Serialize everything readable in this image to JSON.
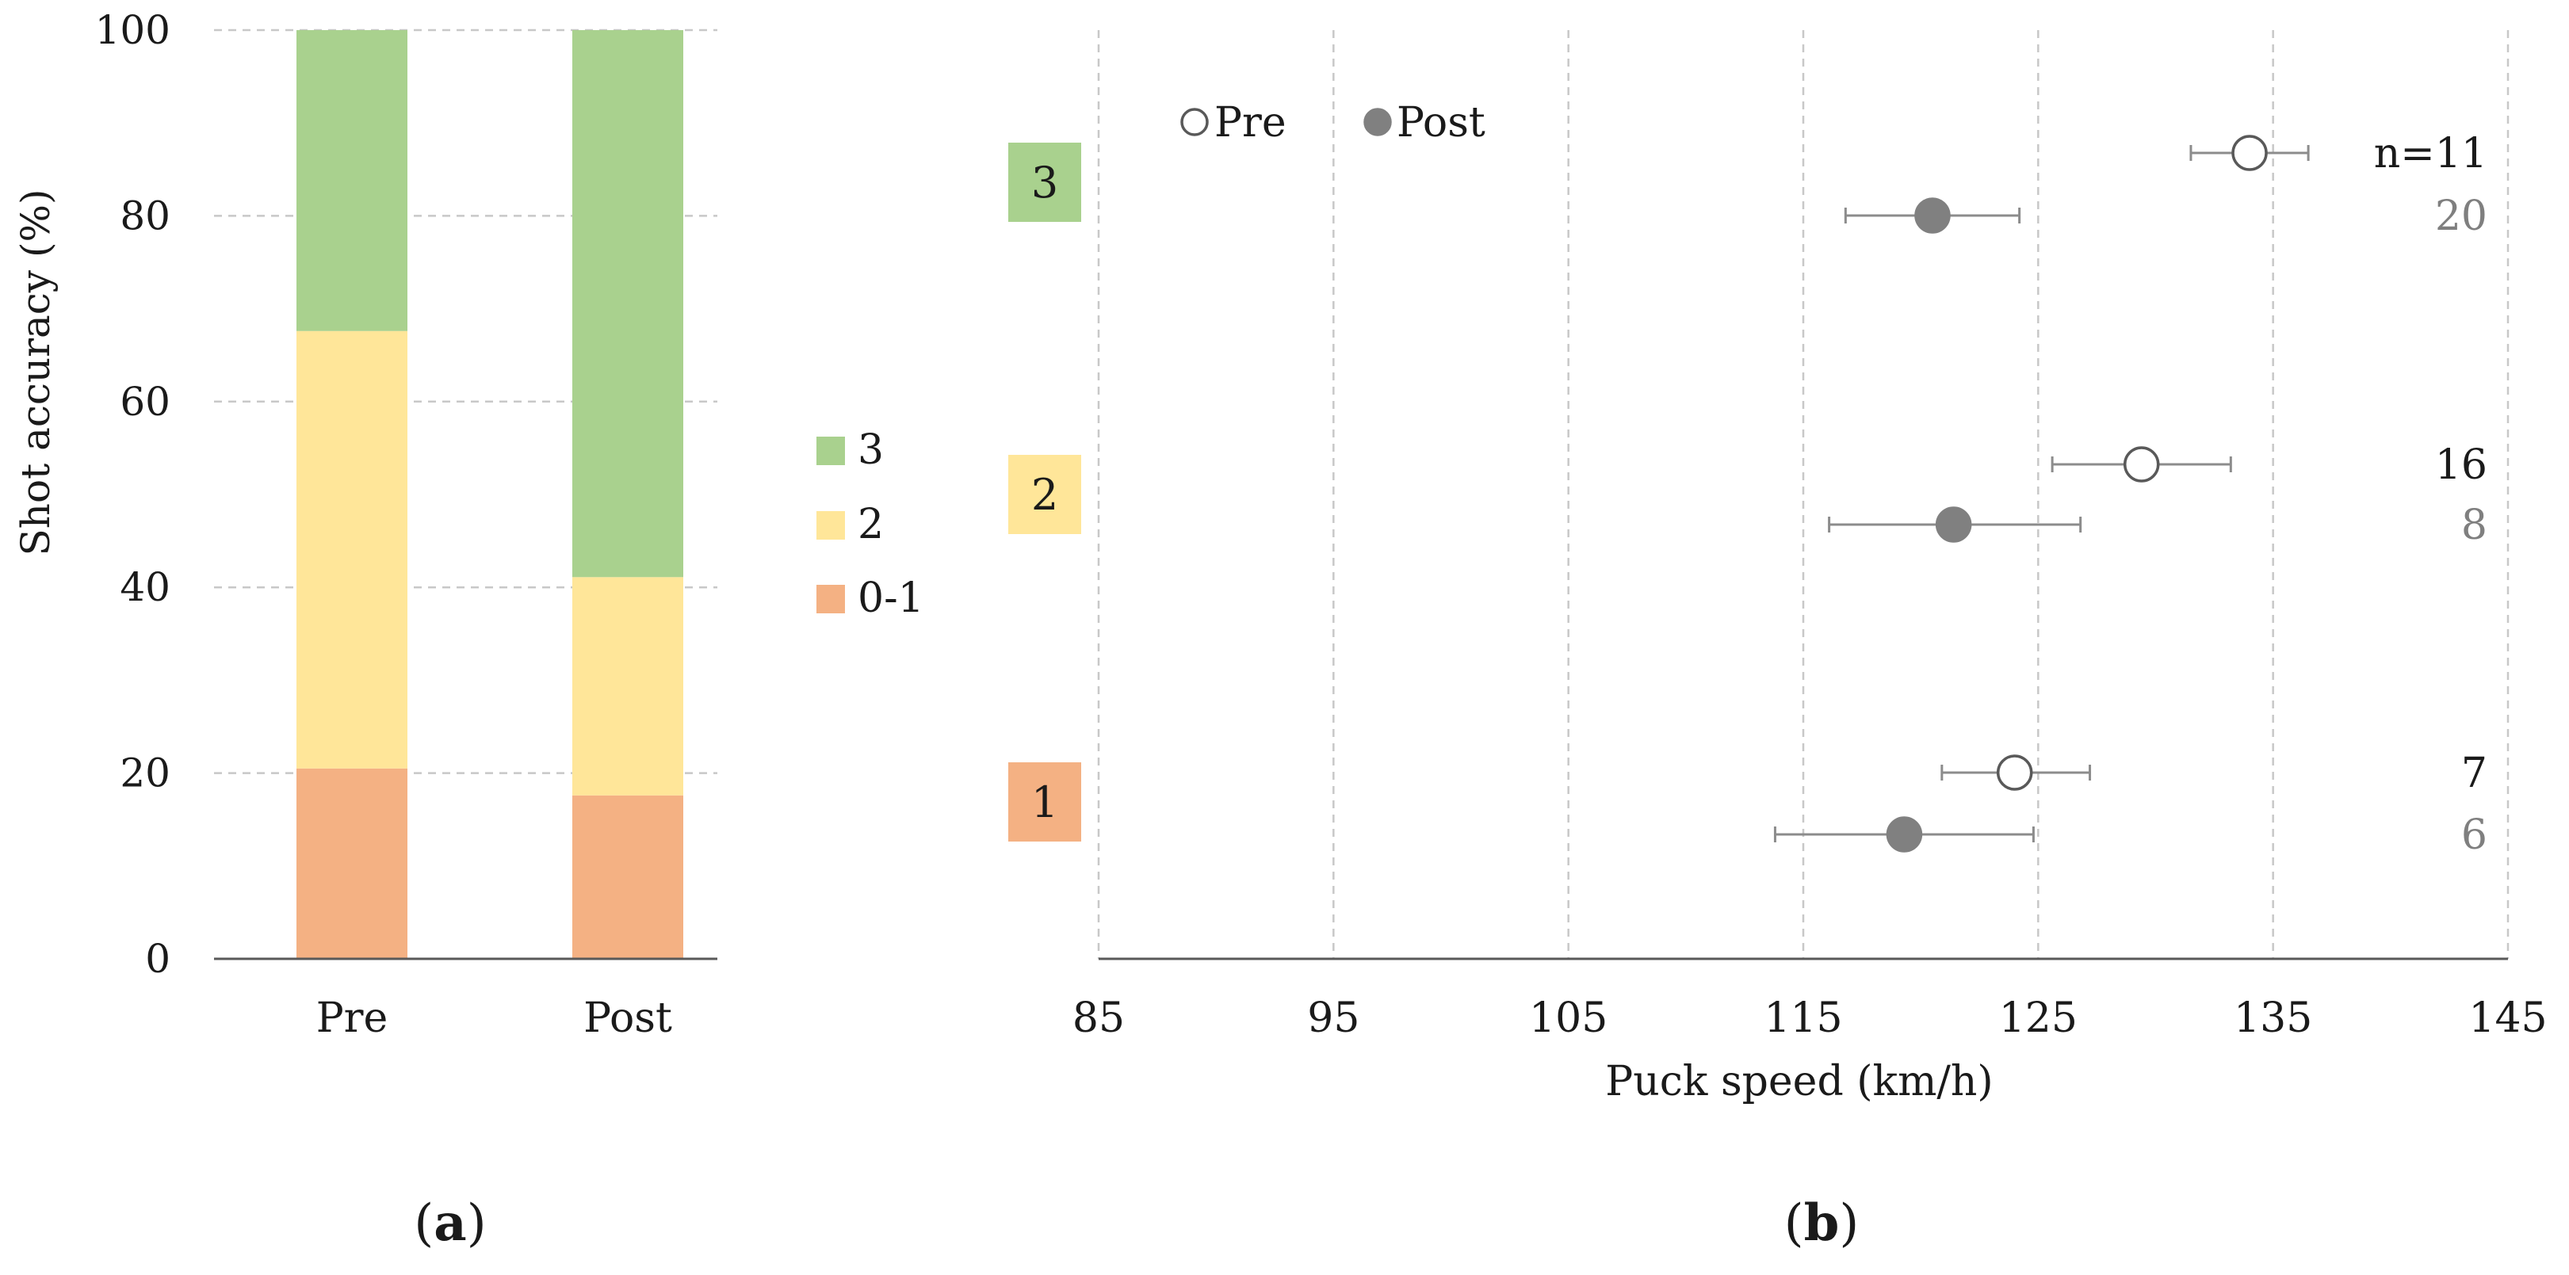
{
  "colors": {
    "green": "#a9d18e",
    "yellow": "#ffe699",
    "orange": "#f4b183",
    "grid": "#c8c8c8",
    "axis": "#595959",
    "pre_fill": "#ffffff",
    "post_fill": "#808080",
    "marker_stroke": "#595959",
    "errorbar": "#8c8c8c",
    "text": "#1a1a1a",
    "post_text": "#7f7f7f"
  },
  "chart_data": [
    {
      "type": "bar",
      "stacked": true,
      "panel_label": "(a)",
      "panel_letter": "a",
      "ylabel": "Shot accuracy (%)",
      "xlabel": "",
      "ylim": [
        0,
        100
      ],
      "yticks": [
        "0",
        "20",
        "40",
        "60",
        "80",
        "100"
      ],
      "categories": [
        "Pre",
        "Post"
      ],
      "series": [
        {
          "name": "0-1",
          "color_key": "orange",
          "values": [
            20.5,
            17.6
          ]
        },
        {
          "name": "2",
          "color_key": "yellow",
          "values": [
            47.1,
            23.5
          ]
        },
        {
          "name": "3",
          "color_key": "green",
          "values": [
            32.4,
            58.9
          ]
        }
      ],
      "legend": [
        "3",
        "2",
        "0-1"
      ],
      "legend_position": "right",
      "grid": true
    },
    {
      "type": "scatter",
      "panel_label": "(b)",
      "panel_letter": "b",
      "xlabel": "Puck speed (km/h)",
      "xlim": [
        85,
        145
      ],
      "xticks": [
        "85",
        "95",
        "105",
        "115",
        "125",
        "135",
        "145"
      ],
      "legend": [
        "Pre",
        "Post"
      ],
      "legend_position": "top-left",
      "grid": true,
      "groups": [
        {
          "label": "3",
          "color_key": "green",
          "pre": {
            "mean": 134.0,
            "lo": 131.5,
            "hi": 136.5,
            "n": "n=11"
          },
          "post": {
            "mean": 120.5,
            "lo": 116.8,
            "hi": 124.2,
            "n": "20"
          }
        },
        {
          "label": "2",
          "color_key": "yellow",
          "pre": {
            "mean": 129.4,
            "lo": 125.6,
            "hi": 133.2,
            "n": "16"
          },
          "post": {
            "mean": 121.4,
            "lo": 116.1,
            "hi": 126.8,
            "n": "8"
          }
        },
        {
          "label": "1",
          "color_key": "orange",
          "pre": {
            "mean": 124.0,
            "lo": 120.9,
            "hi": 127.2,
            "n": "7"
          },
          "post": {
            "mean": 119.3,
            "lo": 113.8,
            "hi": 124.8,
            "n": "6"
          }
        }
      ]
    }
  ]
}
